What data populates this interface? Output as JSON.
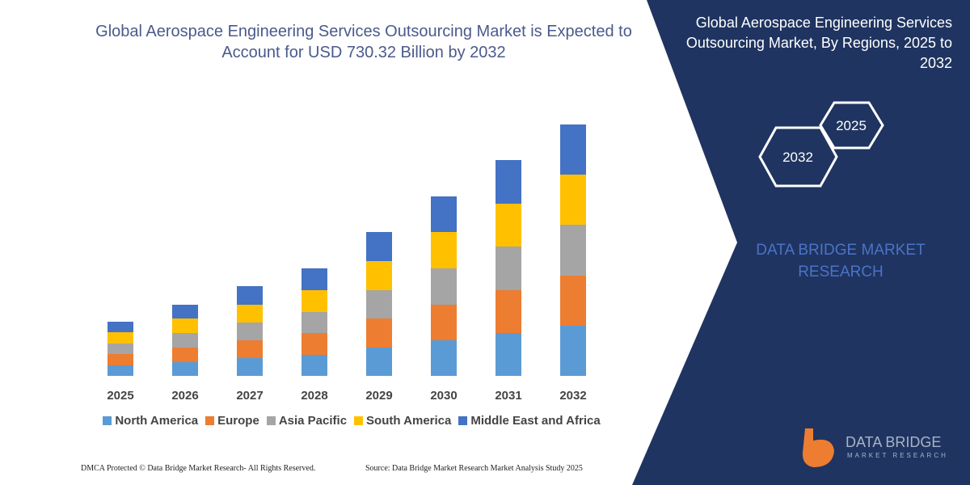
{
  "chart_data": {
    "type": "bar",
    "stacked": true,
    "title": "Global Aerospace Engineering Services Outsourcing Market is Expected to Account for USD 730.32 Billion by 2032",
    "categories": [
      "2025",
      "2026",
      "2027",
      "2028",
      "2029",
      "2030",
      "2031",
      "2032"
    ],
    "series": [
      {
        "name": "North America",
        "color": "#5b9bd5",
        "values": [
          13,
          17,
          22,
          26,
          35,
          44,
          53,
          62
        ]
      },
      {
        "name": "Europe",
        "color": "#ed7d31",
        "values": [
          14,
          18,
          22,
          27,
          36,
          44,
          53,
          62
        ]
      },
      {
        "name": "Asia Pacific",
        "color": "#a5a5a5",
        "values": [
          13,
          18,
          22,
          26,
          35,
          45,
          54,
          63
        ]
      },
      {
        "name": "South America",
        "color": "#ffc000",
        "values": [
          14,
          18,
          22,
          27,
          36,
          45,
          53,
          62
        ]
      },
      {
        "name": "Middle East and Africa",
        "color": "#4472c4",
        "values": [
          13,
          17,
          23,
          27,
          36,
          44,
          54,
          62
        ]
      }
    ],
    "legend": "bottom"
  },
  "panel": {
    "title": "Global Aerospace Engineering Services Outsourcing Market, By Regions, 2025 to 2032",
    "hex_top": "2025",
    "hex_bottom": "2032",
    "brand": "DATA BRIDGE MARKET RESEARCH",
    "logo_name": "DATA BRIDGE",
    "logo_sub": "MARKET RESEARCH"
  },
  "footer": {
    "left": "DMCA Protected © Data Bridge Market Research- All Rights Reserved.",
    "right": "Source: Data Bridge Market Research Market Analysis Study 2025"
  }
}
